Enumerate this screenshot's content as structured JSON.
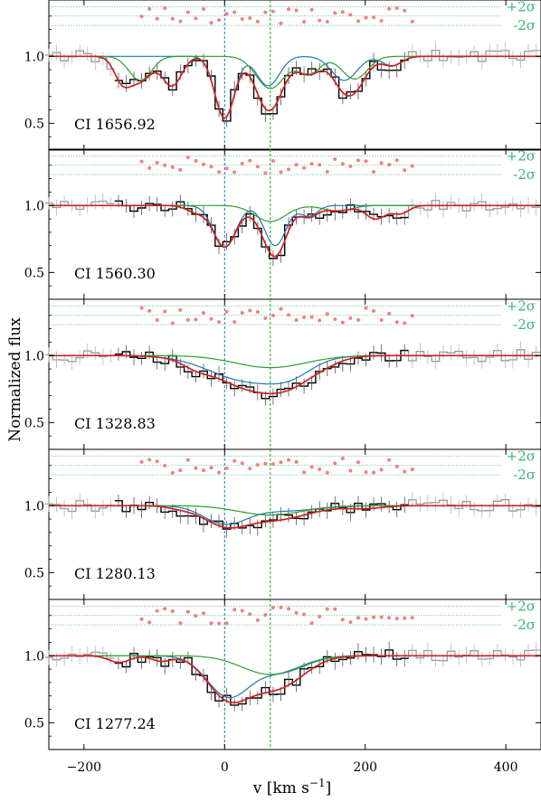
{
  "colors": {
    "data_fit": "#000000",
    "data_out": "#9a9a9a",
    "total_model": "#cc2222",
    "comp_blue": "#1f77b4",
    "comp_green": "#2ca02c",
    "residuals": "#f08080",
    "sigma": "#3cb371",
    "vline_blue": "#1f77b4",
    "vline_green": "#2ca02c"
  },
  "chart_data": {
    "type": "line",
    "ylabel": "Normalized flux",
    "xlabel": "v [km s",
    "xlabel_sup": "−1",
    "xlabel_end": "]",
    "xlim": [
      -250,
      450
    ],
    "ylim": [
      0.3,
      1.42
    ],
    "x_ticks": [
      -200,
      0,
      200,
      400
    ],
    "x_tick_labels": [
      "−200",
      "0",
      "200",
      "400"
    ],
    "y_ticks": [
      0.5,
      1.0
    ],
    "y_tick_labels": [
      "0.5",
      "1.0"
    ],
    "sigma_labels": {
      "plus": "+2σ",
      "minus": "-2σ"
    },
    "sigma_levels": {
      "zero": 1.3,
      "plus": 1.37,
      "minus": 1.23
    },
    "vlines": [
      0,
      65
    ],
    "fit_range": [
      -160,
      260
    ],
    "panels": [
      {
        "label": "CI 1656.92",
        "components": [
          {
            "name": "blue",
            "lines": [
              [
                0,
                0.46,
                14
              ],
              [
                62,
                0.22,
                16
              ],
              [
                170,
                0.18,
                18
              ],
              [
                238,
                0.07,
                14
              ]
            ]
          },
          {
            "name": "green",
            "lines": [
              [
                -120,
                0.18,
                16
              ],
              [
                65,
                0.24,
                20
              ],
              [
                120,
                0.13,
                16
              ],
              [
                185,
                0.17,
                18
              ]
            ]
          },
          {
            "name": "other",
            "lines": [
              [
                -145,
                0.18,
                12
              ],
              [
                -75,
                0.22,
                14
              ]
            ]
          }
        ]
      },
      {
        "label": "CI 1560.30",
        "components": [
          {
            "name": "blue",
            "lines": [
              [
                0,
                0.31,
                16
              ],
              [
                72,
                0.3,
                15
              ],
              [
                120,
                0.08,
                12
              ]
            ]
          },
          {
            "name": "green",
            "lines": [
              [
                65,
                0.12,
                22
              ],
              [
                160,
                0.04,
                20
              ]
            ]
          },
          {
            "name": "other",
            "lines": [
              [
                -40,
                0.05,
                14
              ],
              [
                215,
                0.1,
                14
              ],
              [
                250,
                0.06,
                12
              ]
            ]
          }
        ]
      },
      {
        "label": "CI 1328.83",
        "components": [
          {
            "name": "blue",
            "lines": [
              [
                35,
                0.19,
                55
              ],
              [
                95,
                0.08,
                30
              ]
            ]
          },
          {
            "name": "green",
            "lines": [
              [
                65,
                0.09,
                50
              ]
            ]
          },
          {
            "name": "other",
            "lines": [
              [
                -40,
                0.04,
                18
              ],
              [
                140,
                0.03,
                25
              ]
            ]
          }
        ]
      },
      {
        "label": "CI 1280.13",
        "components": [
          {
            "name": "blue",
            "lines": [
              [
                0,
                0.13,
                30
              ],
              [
                80,
                0.04,
                50
              ]
            ]
          },
          {
            "name": "green",
            "lines": [
              [
                65,
                0.07,
                45
              ]
            ]
          },
          {
            "name": "other",
            "lines": [
              [
                -60,
                0.02,
                20
              ],
              [
                200,
                0.02,
                25
              ]
            ]
          }
        ]
      },
      {
        "label": "CI 1277.24",
        "components": [
          {
            "name": "blue",
            "lines": [
              [
                5,
                0.3,
                30
              ],
              [
                80,
                0.12,
                35
              ]
            ]
          },
          {
            "name": "green",
            "lines": [
              [
                65,
                0.14,
                40
              ]
            ]
          },
          {
            "name": "other",
            "lines": [
              [
                -150,
                0.05,
                15
              ],
              [
                -90,
                0.04,
                14
              ]
            ]
          }
        ]
      }
    ]
  }
}
